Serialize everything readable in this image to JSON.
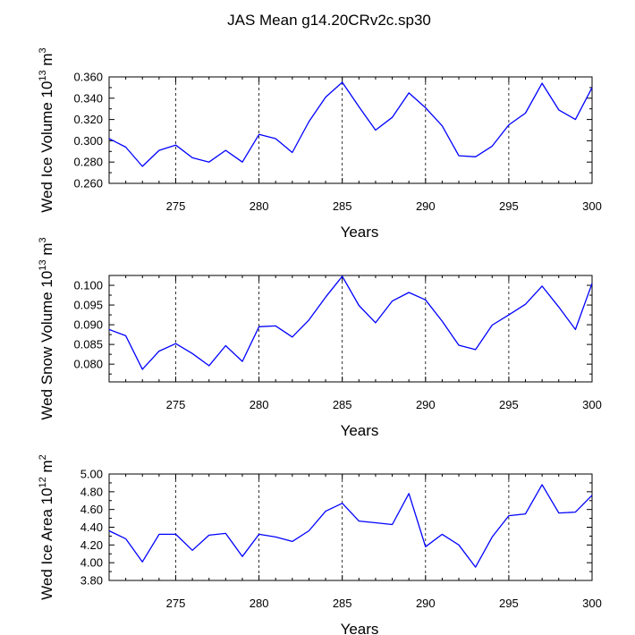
{
  "title": "JAS Mean g14.20CRv2c.sp30",
  "colors": {
    "line": "#0000ff",
    "axis": "#000000"
  },
  "chart_data": [
    {
      "type": "line",
      "xlabel": "Years",
      "ylabel": "Wed Ice Volume 10",
      "ylabel_exp": "13",
      "ylabel_unit": " m",
      "ylabel_unit_exp": "3",
      "xlim": [
        271,
        300
      ],
      "ylim": [
        0.26,
        0.36
      ],
      "xticks": [
        275,
        280,
        285,
        290,
        295,
        300
      ],
      "xtick_labels": [
        "275",
        "280",
        "285",
        "290",
        "295",
        "300"
      ],
      "yticks": [
        0.26,
        0.28,
        0.3,
        0.32,
        0.34,
        0.36
      ],
      "ytick_labels": [
        "0.260",
        "0.280",
        "0.300",
        "0.320",
        "0.340",
        "0.360"
      ],
      "grid": "vertical dashed at major x ticks",
      "x": [
        271,
        272,
        273,
        274,
        275,
        276,
        277,
        278,
        279,
        280,
        281,
        282,
        283,
        284,
        285,
        286,
        287,
        288,
        289,
        290,
        291,
        292,
        293,
        294,
        295,
        296,
        297,
        298,
        299,
        300
      ],
      "y": [
        0.302,
        0.294,
        0.276,
        0.291,
        0.296,
        0.284,
        0.28,
        0.291,
        0.28,
        0.306,
        0.302,
        0.289,
        0.318,
        0.341,
        0.355,
        0.332,
        0.31,
        0.322,
        0.345,
        0.331,
        0.314,
        0.286,
        0.285,
        0.295,
        0.315,
        0.326,
        0.354,
        0.329,
        0.32,
        0.35
      ]
    },
    {
      "type": "line",
      "xlabel": "Years",
      "ylabel": "Wed Snow Volume 10",
      "ylabel_exp": "13",
      "ylabel_unit": " m",
      "ylabel_unit_exp": "3",
      "xlim": [
        271,
        300
      ],
      "ylim": [
        0.0755,
        0.1025
      ],
      "xticks": [
        275,
        280,
        285,
        290,
        295,
        300
      ],
      "xtick_labels": [
        "275",
        "280",
        "285",
        "290",
        "295",
        "300"
      ],
      "yticks": [
        0.08,
        0.085,
        0.09,
        0.095,
        0.1
      ],
      "ytick_labels": [
        "0.080",
        "0.085",
        "0.090",
        "0.095",
        "0.100"
      ],
      "grid": "vertical dashed at major x ticks",
      "x": [
        271,
        272,
        273,
        274,
        275,
        276,
        277,
        278,
        279,
        280,
        281,
        282,
        283,
        284,
        285,
        286,
        287,
        288,
        289,
        290,
        291,
        292,
        293,
        294,
        295,
        296,
        297,
        298,
        299,
        300
      ],
      "y": [
        0.0888,
        0.0872,
        0.0787,
        0.0833,
        0.0852,
        0.0827,
        0.0796,
        0.0847,
        0.0807,
        0.0895,
        0.0897,
        0.0869,
        0.0912,
        0.097,
        0.1023,
        0.0949,
        0.0905,
        0.096,
        0.0982,
        0.0963,
        0.0909,
        0.0848,
        0.0837,
        0.0899,
        0.0925,
        0.0952,
        0.0998,
        0.0945,
        0.0888,
        0.1005
      ]
    },
    {
      "type": "line",
      "xlabel": "Years",
      "ylabel": "Wed Ice Area 10",
      "ylabel_exp": "12",
      "ylabel_unit": " m",
      "ylabel_unit_exp": "2",
      "xlim": [
        271,
        300
      ],
      "ylim": [
        3.8,
        5.0
      ],
      "xticks": [
        275,
        280,
        285,
        290,
        295,
        300
      ],
      "xtick_labels": [
        "275",
        "280",
        "285",
        "290",
        "295",
        "300"
      ],
      "yticks": [
        3.8,
        4.0,
        4.2,
        4.4,
        4.6,
        4.8,
        5.0
      ],
      "ytick_labels": [
        "3.80",
        "4.00",
        "4.20",
        "4.40",
        "4.60",
        "4.80",
        "5.00"
      ],
      "grid": "vertical dashed at major x ticks",
      "x": [
        271,
        272,
        273,
        274,
        275,
        276,
        277,
        278,
        279,
        280,
        281,
        282,
        283,
        284,
        285,
        286,
        287,
        288,
        289,
        290,
        291,
        292,
        293,
        294,
        295,
        296,
        297,
        298,
        299,
        300
      ],
      "y": [
        4.36,
        4.27,
        4.01,
        4.32,
        4.32,
        4.14,
        4.31,
        4.33,
        4.07,
        4.32,
        4.29,
        4.24,
        4.36,
        4.58,
        4.67,
        4.47,
        4.45,
        4.43,
        4.78,
        4.18,
        4.32,
        4.2,
        3.95,
        4.29,
        4.53,
        4.55,
        4.88,
        4.56,
        4.57,
        4.76
      ]
    }
  ]
}
